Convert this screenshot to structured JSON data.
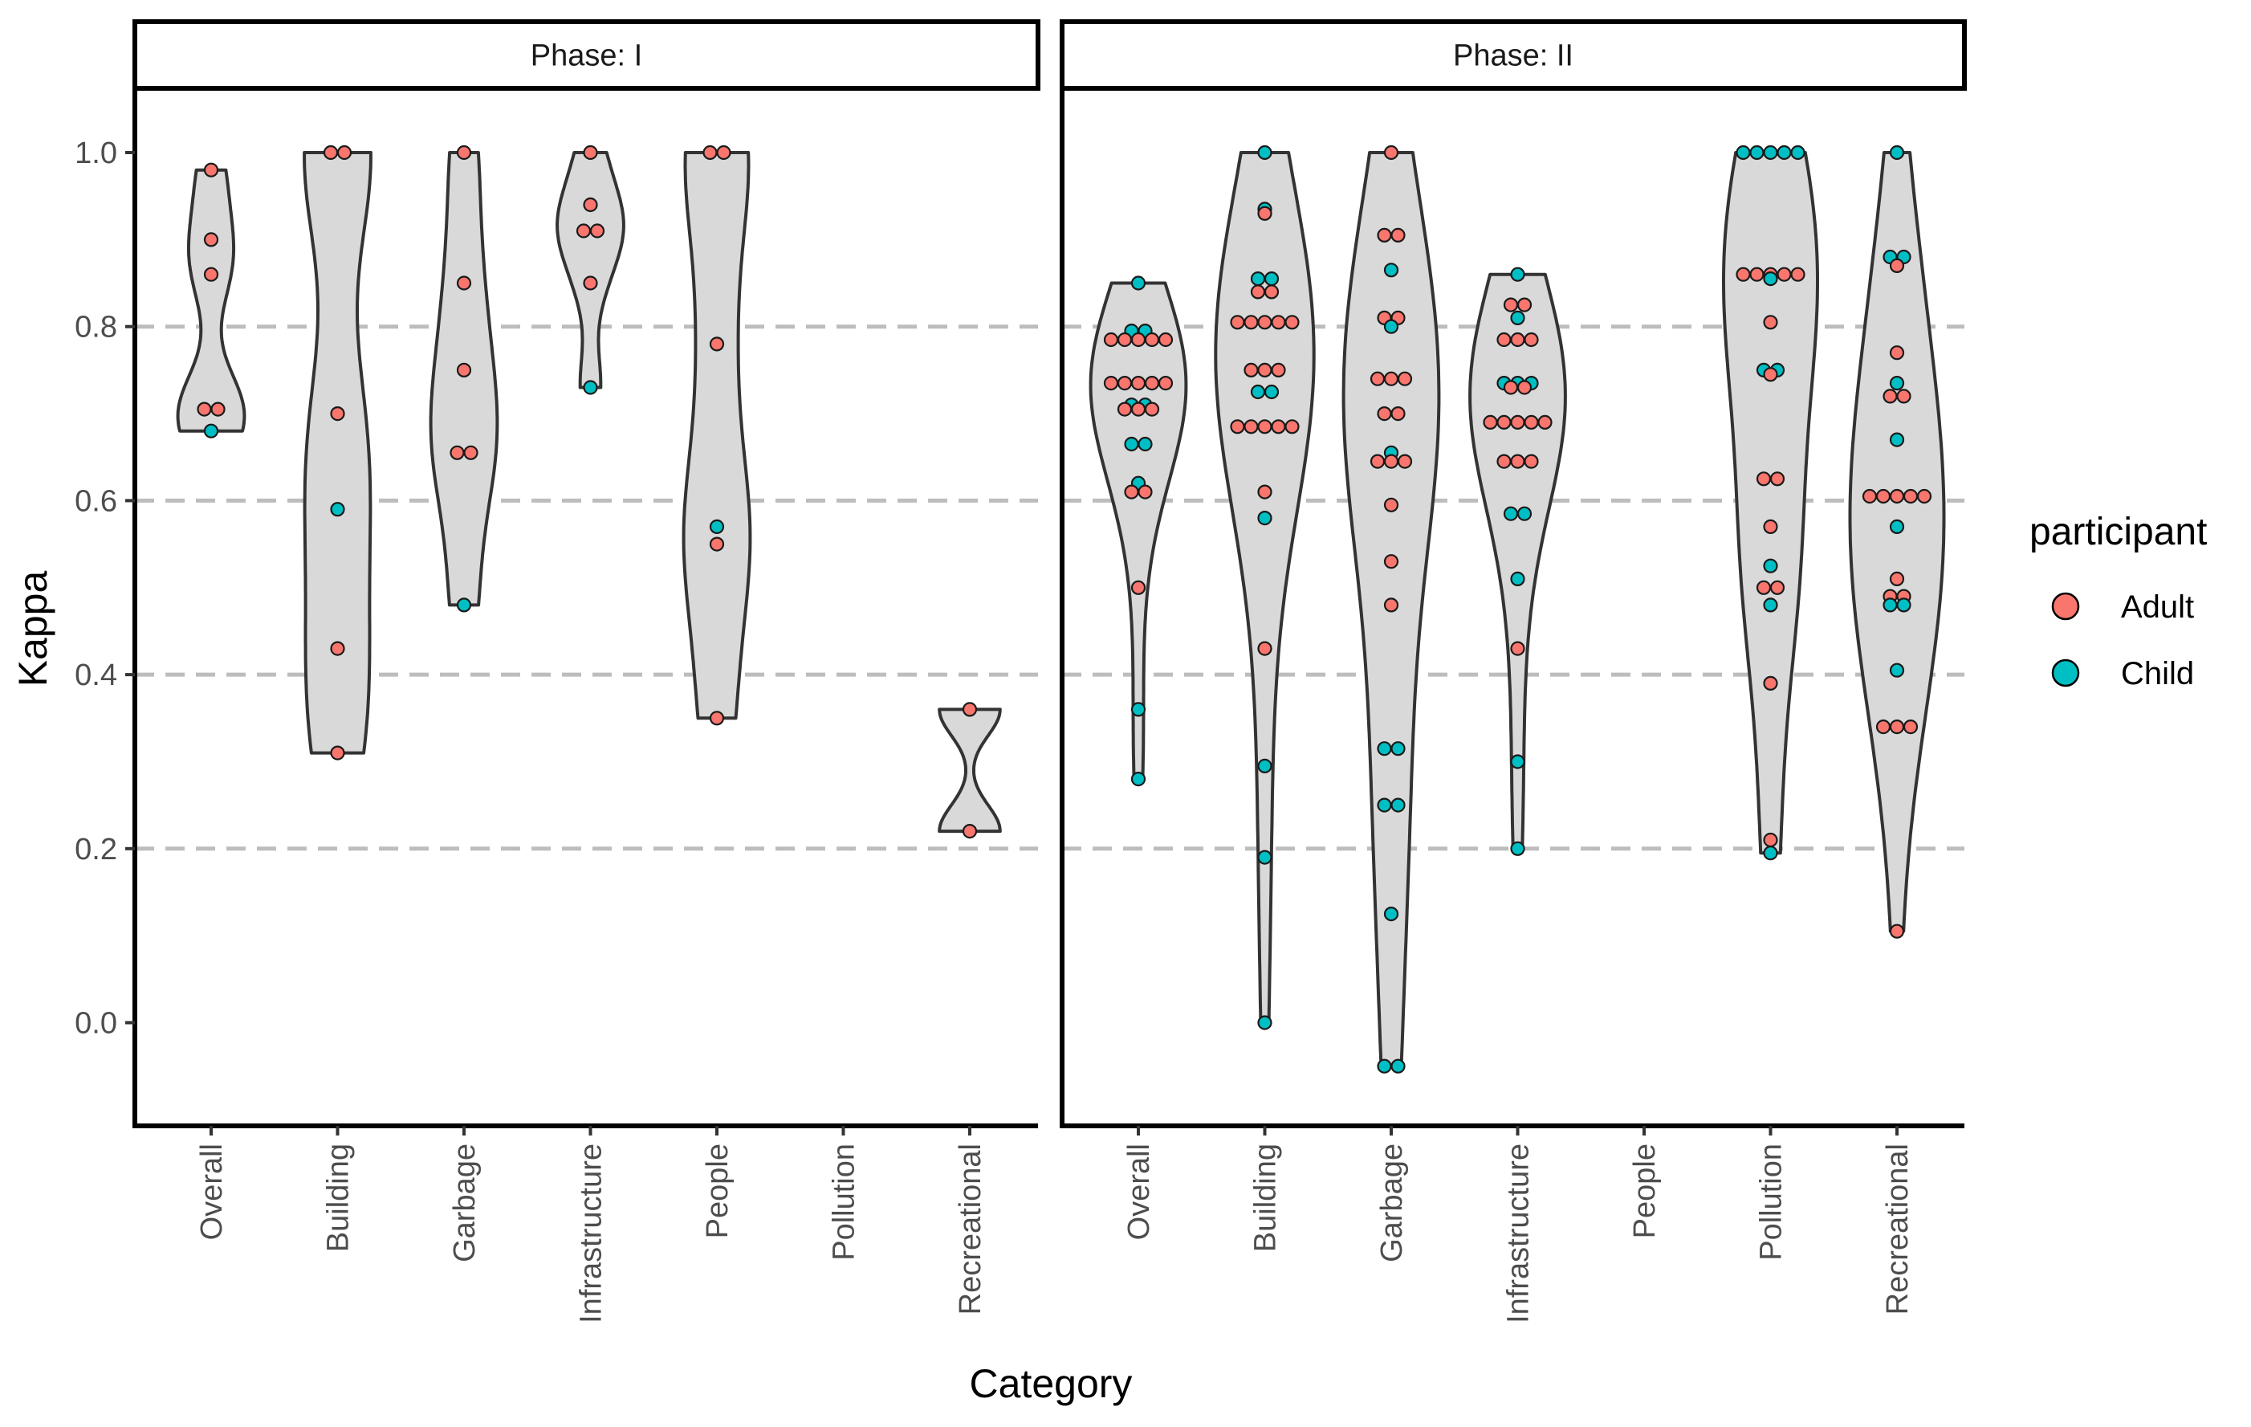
{
  "chart_data": {
    "type": "violin",
    "xlabel": "Category",
    "ylabel": "Kappa",
    "ylim": [
      -0.12,
      1.08
    ],
    "yticks": [
      0.0,
      0.2,
      0.4,
      0.6,
      0.8,
      1.0
    ],
    "ytick_labels": [
      "0.0",
      "0.2",
      "0.4",
      "0.6",
      "0.8",
      "1.0"
    ],
    "gridlines": [
      0.2,
      0.4,
      0.6,
      0.8
    ],
    "categories": [
      "Overall",
      "Building",
      "Garbage",
      "Infrastructure",
      "People",
      "Pollution",
      "Recreational"
    ],
    "legend": {
      "title": "participant",
      "entries": [
        {
          "label": "Adult",
          "color": "#F8766D"
        },
        {
          "label": "Child",
          "color": "#00BFC4"
        }
      ]
    },
    "violin_fill": "#D9D9D9",
    "violin_stroke": "#333333",
    "panels": [
      {
        "strip_label": "Phase: I",
        "groups": [
          {
            "category": "Overall",
            "points": [
              {
                "y": 0.98,
                "p": "Adult"
              },
              {
                "y": 0.9,
                "p": "Adult"
              },
              {
                "y": 0.86,
                "p": "Adult"
              },
              {
                "y": 0.705,
                "p": "Adult"
              },
              {
                "y": 0.705,
                "p": "Adult"
              },
              {
                "y": 0.68,
                "p": "Child"
              }
            ]
          },
          {
            "category": "Building",
            "points": [
              {
                "y": 1.0,
                "p": "Adult"
              },
              {
                "y": 1.0,
                "p": "Adult"
              },
              {
                "y": 0.7,
                "p": "Adult"
              },
              {
                "y": 0.59,
                "p": "Child"
              },
              {
                "y": 0.43,
                "p": "Adult"
              },
              {
                "y": 0.31,
                "p": "Adult"
              }
            ]
          },
          {
            "category": "Garbage",
            "points": [
              {
                "y": 1.0,
                "p": "Adult"
              },
              {
                "y": 0.85,
                "p": "Adult"
              },
              {
                "y": 0.75,
                "p": "Adult"
              },
              {
                "y": 0.655,
                "p": "Adult"
              },
              {
                "y": 0.655,
                "p": "Adult"
              },
              {
                "y": 0.48,
                "p": "Child"
              }
            ]
          },
          {
            "category": "Infrastructure",
            "points": [
              {
                "y": 1.0,
                "p": "Adult"
              },
              {
                "y": 0.94,
                "p": "Adult"
              },
              {
                "y": 0.91,
                "p": "Adult"
              },
              {
                "y": 0.91,
                "p": "Adult"
              },
              {
                "y": 0.85,
                "p": "Adult"
              },
              {
                "y": 0.73,
                "p": "Child"
              }
            ]
          },
          {
            "category": "People",
            "points": [
              {
                "y": 1.0,
                "p": "Adult"
              },
              {
                "y": 1.0,
                "p": "Adult"
              },
              {
                "y": 0.78,
                "p": "Adult"
              },
              {
                "y": 0.57,
                "p": "Child"
              },
              {
                "y": 0.55,
                "p": "Adult"
              },
              {
                "y": 0.35,
                "p": "Adult"
              }
            ]
          },
          {
            "category": "Pollution",
            "points": []
          },
          {
            "category": "Recreational",
            "points": [
              {
                "y": 0.36,
                "p": "Adult"
              },
              {
                "y": 0.22,
                "p": "Adult"
              }
            ]
          }
        ]
      },
      {
        "strip_label": "Phase: II",
        "groups": [
          {
            "category": "Overall",
            "points": [
              {
                "y": 0.85,
                "p": "Child"
              },
              {
                "y": 0.795,
                "p": "Child"
              },
              {
                "y": 0.795,
                "p": "Child"
              },
              {
                "y": 0.785,
                "p": "Adult"
              },
              {
                "y": 0.785,
                "p": "Adult"
              },
              {
                "y": 0.785,
                "p": "Adult"
              },
              {
                "y": 0.785,
                "p": "Adult"
              },
              {
                "y": 0.785,
                "p": "Adult"
              },
              {
                "y": 0.735,
                "p": "Adult"
              },
              {
                "y": 0.735,
                "p": "Adult"
              },
              {
                "y": 0.735,
                "p": "Adult"
              },
              {
                "y": 0.735,
                "p": "Adult"
              },
              {
                "y": 0.735,
                "p": "Adult"
              },
              {
                "y": 0.71,
                "p": "Child"
              },
              {
                "y": 0.71,
                "p": "Child"
              },
              {
                "y": 0.705,
                "p": "Adult"
              },
              {
                "y": 0.705,
                "p": "Adult"
              },
              {
                "y": 0.705,
                "p": "Adult"
              },
              {
                "y": 0.665,
                "p": "Child"
              },
              {
                "y": 0.665,
                "p": "Child"
              },
              {
                "y": 0.62,
                "p": "Child"
              },
              {
                "y": 0.61,
                "p": "Adult"
              },
              {
                "y": 0.61,
                "p": "Adult"
              },
              {
                "y": 0.5,
                "p": "Adult"
              },
              {
                "y": 0.36,
                "p": "Child"
              },
              {
                "y": 0.28,
                "p": "Child"
              }
            ]
          },
          {
            "category": "Building",
            "points": [
              {
                "y": 1.0,
                "p": "Child"
              },
              {
                "y": 0.935,
                "p": "Child"
              },
              {
                "y": 0.93,
                "p": "Adult"
              },
              {
                "y": 0.855,
                "p": "Child"
              },
              {
                "y": 0.855,
                "p": "Child"
              },
              {
                "y": 0.84,
                "p": "Adult"
              },
              {
                "y": 0.84,
                "p": "Adult"
              },
              {
                "y": 0.805,
                "p": "Adult"
              },
              {
                "y": 0.805,
                "p": "Adult"
              },
              {
                "y": 0.805,
                "p": "Adult"
              },
              {
                "y": 0.805,
                "p": "Adult"
              },
              {
                "y": 0.805,
                "p": "Adult"
              },
              {
                "y": 0.75,
                "p": "Adult"
              },
              {
                "y": 0.75,
                "p": "Adult"
              },
              {
                "y": 0.75,
                "p": "Adult"
              },
              {
                "y": 0.725,
                "p": "Child"
              },
              {
                "y": 0.725,
                "p": "Child"
              },
              {
                "y": 0.685,
                "p": "Adult"
              },
              {
                "y": 0.685,
                "p": "Adult"
              },
              {
                "y": 0.685,
                "p": "Adult"
              },
              {
                "y": 0.685,
                "p": "Adult"
              },
              {
                "y": 0.685,
                "p": "Adult"
              },
              {
                "y": 0.61,
                "p": "Adult"
              },
              {
                "y": 0.58,
                "p": "Child"
              },
              {
                "y": 0.43,
                "p": "Adult"
              },
              {
                "y": 0.295,
                "p": "Child"
              },
              {
                "y": 0.19,
                "p": "Child"
              },
              {
                "y": 0.0,
                "p": "Child"
              }
            ]
          },
          {
            "category": "Garbage",
            "points": [
              {
                "y": 1.0,
                "p": "Adult"
              },
              {
                "y": 0.905,
                "p": "Adult"
              },
              {
                "y": 0.905,
                "p": "Adult"
              },
              {
                "y": 0.865,
                "p": "Child"
              },
              {
                "y": 0.81,
                "p": "Adult"
              },
              {
                "y": 0.81,
                "p": "Adult"
              },
              {
                "y": 0.8,
                "p": "Child"
              },
              {
                "y": 0.74,
                "p": "Adult"
              },
              {
                "y": 0.74,
                "p": "Adult"
              },
              {
                "y": 0.74,
                "p": "Adult"
              },
              {
                "y": 0.7,
                "p": "Adult"
              },
              {
                "y": 0.7,
                "p": "Adult"
              },
              {
                "y": 0.655,
                "p": "Child"
              },
              {
                "y": 0.645,
                "p": "Adult"
              },
              {
                "y": 0.645,
                "p": "Adult"
              },
              {
                "y": 0.645,
                "p": "Adult"
              },
              {
                "y": 0.595,
                "p": "Adult"
              },
              {
                "y": 0.53,
                "p": "Adult"
              },
              {
                "y": 0.48,
                "p": "Adult"
              },
              {
                "y": 0.315,
                "p": "Child"
              },
              {
                "y": 0.315,
                "p": "Child"
              },
              {
                "y": 0.25,
                "p": "Child"
              },
              {
                "y": 0.25,
                "p": "Child"
              },
              {
                "y": 0.125,
                "p": "Child"
              },
              {
                "y": -0.05,
                "p": "Child"
              },
              {
                "y": -0.05,
                "p": "Child"
              }
            ]
          },
          {
            "category": "Infrastructure",
            "points": [
              {
                "y": 0.86,
                "p": "Child"
              },
              {
                "y": 0.825,
                "p": "Adult"
              },
              {
                "y": 0.825,
                "p": "Adult"
              },
              {
                "y": 0.81,
                "p": "Child"
              },
              {
                "y": 0.785,
                "p": "Adult"
              },
              {
                "y": 0.785,
                "p": "Adult"
              },
              {
                "y": 0.785,
                "p": "Adult"
              },
              {
                "y": 0.735,
                "p": "Child"
              },
              {
                "y": 0.735,
                "p": "Child"
              },
              {
                "y": 0.735,
                "p": "Child"
              },
              {
                "y": 0.73,
                "p": "Adult"
              },
              {
                "y": 0.73,
                "p": "Adult"
              },
              {
                "y": 0.69,
                "p": "Adult"
              },
              {
                "y": 0.69,
                "p": "Adult"
              },
              {
                "y": 0.69,
                "p": "Adult"
              },
              {
                "y": 0.69,
                "p": "Adult"
              },
              {
                "y": 0.69,
                "p": "Adult"
              },
              {
                "y": 0.645,
                "p": "Adult"
              },
              {
                "y": 0.645,
                "p": "Adult"
              },
              {
                "y": 0.645,
                "p": "Adult"
              },
              {
                "y": 0.585,
                "p": "Child"
              },
              {
                "y": 0.585,
                "p": "Child"
              },
              {
                "y": 0.51,
                "p": "Child"
              },
              {
                "y": 0.43,
                "p": "Adult"
              },
              {
                "y": 0.3,
                "p": "Child"
              },
              {
                "y": 0.2,
                "p": "Child"
              }
            ]
          },
          {
            "category": "People",
            "points": []
          },
          {
            "category": "Pollution",
            "points": [
              {
                "y": 1.0,
                "p": "Child"
              },
              {
                "y": 1.0,
                "p": "Child"
              },
              {
                "y": 1.0,
                "p": "Child"
              },
              {
                "y": 1.0,
                "p": "Child"
              },
              {
                "y": 1.0,
                "p": "Child"
              },
              {
                "y": 0.86,
                "p": "Adult"
              },
              {
                "y": 0.86,
                "p": "Adult"
              },
              {
                "y": 0.86,
                "p": "Adult"
              },
              {
                "y": 0.86,
                "p": "Adult"
              },
              {
                "y": 0.86,
                "p": "Adult"
              },
              {
                "y": 0.855,
                "p": "Child"
              },
              {
                "y": 0.805,
                "p": "Adult"
              },
              {
                "y": 0.75,
                "p": "Child"
              },
              {
                "y": 0.75,
                "p": "Child"
              },
              {
                "y": 0.745,
                "p": "Adult"
              },
              {
                "y": 0.625,
                "p": "Adult"
              },
              {
                "y": 0.625,
                "p": "Adult"
              },
              {
                "y": 0.57,
                "p": "Adult"
              },
              {
                "y": 0.525,
                "p": "Child"
              },
              {
                "y": 0.5,
                "p": "Adult"
              },
              {
                "y": 0.5,
                "p": "Adult"
              },
              {
                "y": 0.48,
                "p": "Child"
              },
              {
                "y": 0.39,
                "p": "Adult"
              },
              {
                "y": 0.21,
                "p": "Adult"
              },
              {
                "y": 0.195,
                "p": "Child"
              }
            ]
          },
          {
            "category": "Recreational",
            "points": [
              {
                "y": 1.0,
                "p": "Child"
              },
              {
                "y": 0.88,
                "p": "Child"
              },
              {
                "y": 0.88,
                "p": "Child"
              },
              {
                "y": 0.87,
                "p": "Adult"
              },
              {
                "y": 0.77,
                "p": "Adult"
              },
              {
                "y": 0.735,
                "p": "Child"
              },
              {
                "y": 0.72,
                "p": "Adult"
              },
              {
                "y": 0.72,
                "p": "Adult"
              },
              {
                "y": 0.67,
                "p": "Child"
              },
              {
                "y": 0.605,
                "p": "Adult"
              },
              {
                "y": 0.605,
                "p": "Adult"
              },
              {
                "y": 0.605,
                "p": "Adult"
              },
              {
                "y": 0.605,
                "p": "Adult"
              },
              {
                "y": 0.605,
                "p": "Adult"
              },
              {
                "y": 0.57,
                "p": "Child"
              },
              {
                "y": 0.51,
                "p": "Adult"
              },
              {
                "y": 0.49,
                "p": "Adult"
              },
              {
                "y": 0.49,
                "p": "Adult"
              },
              {
                "y": 0.48,
                "p": "Child"
              },
              {
                "y": 0.48,
                "p": "Child"
              },
              {
                "y": 0.405,
                "p": "Child"
              },
              {
                "y": 0.34,
                "p": "Adult"
              },
              {
                "y": 0.34,
                "p": "Adult"
              },
              {
                "y": 0.34,
                "p": "Adult"
              },
              {
                "y": 0.105,
                "p": "Adult"
              }
            ]
          }
        ]
      }
    ]
  }
}
